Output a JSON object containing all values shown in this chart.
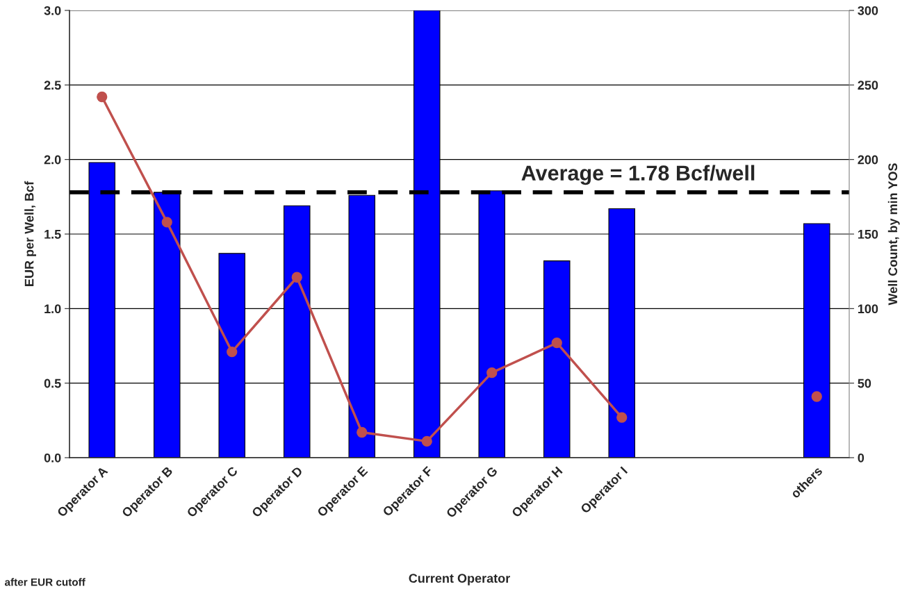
{
  "chart_data": {
    "type": "bar",
    "categories": [
      "Operator A",
      "Operator B",
      "Operator C",
      "Operator D",
      "Operator E",
      "Operator F",
      "Operator G",
      "Operator H",
      "Operator I",
      null,
      null,
      "others"
    ],
    "series": [
      {
        "color": "#0000ff",
        "values": [
          1.98,
          1.78,
          1.37,
          1.69,
          1.76,
          3.0,
          1.79,
          1.32,
          1.67,
          null,
          null,
          1.57
        ]
      },
      {
        "type": "line",
        "axis": "y2",
        "color": "#c0504d",
        "marker": "circle",
        "values": [
          242,
          158,
          71,
          121,
          17,
          11,
          57,
          77,
          27,
          null,
          null,
          41
        ]
      }
    ],
    "xlabel": "Current Operator",
    "ylabel": "EUR per Well, Bcf",
    "y2label": "Well Count, by min YOS",
    "ylim": [
      0,
      3.0
    ],
    "yticks": [
      {
        "value": 0,
        "label": "0.0"
      },
      {
        "value": 0.5,
        "label": "0.5"
      },
      {
        "value": 1.0,
        "label": "1.0"
      },
      {
        "value": 1.5,
        "label": "1.5"
      },
      {
        "value": 2.0,
        "label": "2.0"
      },
      {
        "value": 2.5,
        "label": "2.5"
      },
      {
        "value": 3.0,
        "label": "3.0"
      }
    ],
    "y2lim": [
      0,
      300
    ],
    "y2ticks": [
      0,
      50,
      100,
      150,
      200,
      250,
      300
    ],
    "ref_lines": [
      {
        "axis": "y",
        "value": 1.78,
        "label": "Average = 1.78 Bcf/well",
        "color": "#000000",
        "line_style": "dashed"
      }
    ],
    "annotations": [
      "after EUR cutoff"
    ],
    "grid": "y"
  }
}
